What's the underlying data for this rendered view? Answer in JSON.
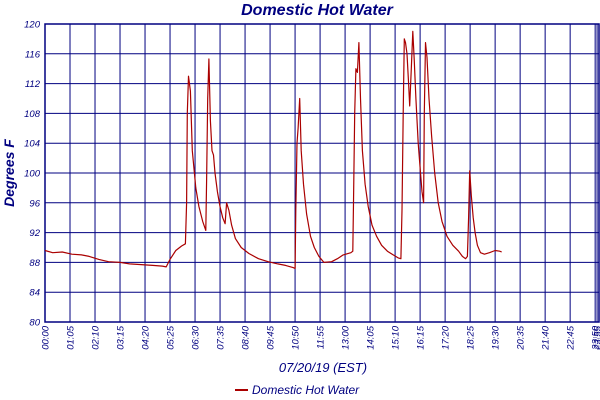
{
  "chart_data": {
    "type": "line",
    "title": "Domestic Hot Water",
    "xlabel": "07/20/19 (EST)",
    "ylabel": "Degrees F",
    "ylim": [
      80,
      120
    ],
    "yticks": [
      80,
      84,
      88,
      92,
      96,
      100,
      104,
      108,
      112,
      116,
      120
    ],
    "xlim": [
      0,
      1440
    ],
    "xticks": [
      {
        "t": 0,
        "label": "00:00"
      },
      {
        "t": 65,
        "label": "01:05"
      },
      {
        "t": 130,
        "label": "02:10"
      },
      {
        "t": 195,
        "label": "03:15"
      },
      {
        "t": 260,
        "label": "04:20"
      },
      {
        "t": 325,
        "label": "05:25"
      },
      {
        "t": 390,
        "label": "06:30"
      },
      {
        "t": 455,
        "label": "07:35"
      },
      {
        "t": 520,
        "label": "08:40"
      },
      {
        "t": 585,
        "label": "09:45"
      },
      {
        "t": 650,
        "label": "10:50"
      },
      {
        "t": 715,
        "label": "11:55"
      },
      {
        "t": 780,
        "label": "13:00"
      },
      {
        "t": 845,
        "label": "14:05"
      },
      {
        "t": 910,
        "label": "15:10"
      },
      {
        "t": 975,
        "label": "16:15"
      },
      {
        "t": 1040,
        "label": "17:20"
      },
      {
        "t": 1105,
        "label": "18:25"
      },
      {
        "t": 1170,
        "label": "19:30"
      },
      {
        "t": 1235,
        "label": "20:35"
      },
      {
        "t": 1300,
        "label": "21:40"
      },
      {
        "t": 1365,
        "label": "22:45"
      },
      {
        "t": 1430,
        "label": "23:50"
      },
      {
        "t": 1435,
        "label": "23:55"
      }
    ],
    "grid": true,
    "legend_position": "bottom",
    "colors": {
      "line": "#aa0000",
      "axis": "#000080",
      "grid": "#000080"
    },
    "series": [
      {
        "name": "Domestic Hot Water",
        "points": [
          [
            0,
            89.6
          ],
          [
            20,
            89.3
          ],
          [
            45,
            89.4
          ],
          [
            70,
            89.1
          ],
          [
            95,
            89.0
          ],
          [
            115,
            88.8
          ],
          [
            140,
            88.4
          ],
          [
            165,
            88.1
          ],
          [
            195,
            88.0
          ],
          [
            220,
            87.8
          ],
          [
            250,
            87.7
          ],
          [
            280,
            87.6
          ],
          [
            305,
            87.5
          ],
          [
            315,
            87.4
          ],
          [
            325,
            88.4
          ],
          [
            340,
            89.6
          ],
          [
            355,
            90.2
          ],
          [
            365,
            90.5
          ],
          [
            368,
            96.0
          ],
          [
            370,
            108.0
          ],
          [
            373,
            113.0
          ],
          [
            378,
            111.0
          ],
          [
            383,
            103.0
          ],
          [
            392,
            98.0
          ],
          [
            400,
            95.5
          ],
          [
            410,
            93.5
          ],
          [
            418,
            92.3
          ],
          [
            420,
            99.0
          ],
          [
            423,
            110.0
          ],
          [
            426,
            115.3
          ],
          [
            430,
            107.0
          ],
          [
            434,
            103.0
          ],
          [
            438,
            102.4
          ],
          [
            442,
            100.0
          ],
          [
            448,
            97.5
          ],
          [
            455,
            95.5
          ],
          [
            462,
            94.0
          ],
          [
            468,
            93.2
          ],
          [
            472,
            96.0
          ],
          [
            478,
            95.0
          ],
          [
            485,
            93.0
          ],
          [
            495,
            91.2
          ],
          [
            510,
            90.0
          ],
          [
            530,
            89.2
          ],
          [
            555,
            88.5
          ],
          [
            580,
            88.1
          ],
          [
            605,
            87.8
          ],
          [
            625,
            87.6
          ],
          [
            645,
            87.3
          ],
          [
            650,
            87.2
          ],
          [
            652,
            95.0
          ],
          [
            655,
            104.0
          ],
          [
            658,
            106.0
          ],
          [
            662,
            110.0
          ],
          [
            666,
            103.0
          ],
          [
            672,
            98.5
          ],
          [
            680,
            94.5
          ],
          [
            690,
            91.5
          ],
          [
            700,
            90.0
          ],
          [
            712,
            88.8
          ],
          [
            725,
            88.0
          ],
          [
            745,
            88.1
          ],
          [
            760,
            88.5
          ],
          [
            775,
            89.0
          ],
          [
            795,
            89.3
          ],
          [
            800,
            89.5
          ],
          [
            802,
            96.0
          ],
          [
            805,
            108.0
          ],
          [
            808,
            114.0
          ],
          [
            812,
            113.5
          ],
          [
            816,
            117.5
          ],
          [
            820,
            110.0
          ],
          [
            825,
            103.0
          ],
          [
            832,
            98.5
          ],
          [
            840,
            95.5
          ],
          [
            850,
            93.0
          ],
          [
            862,
            91.5
          ],
          [
            875,
            90.3
          ],
          [
            890,
            89.5
          ],
          [
            905,
            89.0
          ],
          [
            918,
            88.6
          ],
          [
            925,
            88.5
          ],
          [
            928,
            95.0
          ],
          [
            931,
            108.0
          ],
          [
            934,
            118.0
          ],
          [
            937,
            117.5
          ],
          [
            941,
            116.0
          ],
          [
            945,
            112.0
          ],
          [
            948,
            109.0
          ],
          [
            952,
            114.0
          ],
          [
            956,
            119.0
          ],
          [
            960,
            115.0
          ],
          [
            964,
            110.0
          ],
          [
            970,
            104.0
          ],
          [
            976,
            100.0
          ],
          [
            980,
            97.5
          ],
          [
            984,
            96.0
          ],
          [
            986,
            108.0
          ],
          [
            989,
            117.5
          ],
          [
            993,
            115.5
          ],
          [
            998,
            110.0
          ],
          [
            1005,
            105.0
          ],
          [
            1013,
            100.0
          ],
          [
            1022,
            96.0
          ],
          [
            1032,
            93.5
          ],
          [
            1045,
            91.5
          ],
          [
            1060,
            90.3
          ],
          [
            1075,
            89.5
          ],
          [
            1085,
            88.8
          ],
          [
            1093,
            88.5
          ],
          [
            1098,
            88.8
          ],
          [
            1101,
            94.0
          ],
          [
            1104,
            100.3
          ],
          [
            1108,
            97.0
          ],
          [
            1113,
            94.0
          ],
          [
            1118,
            92.0
          ],
          [
            1124,
            90.3
          ],
          [
            1132,
            89.3
          ],
          [
            1142,
            89.1
          ],
          [
            1155,
            89.3
          ],
          [
            1170,
            89.6
          ],
          [
            1182,
            89.5
          ],
          [
            1187,
            89.4
          ]
        ]
      }
    ]
  }
}
